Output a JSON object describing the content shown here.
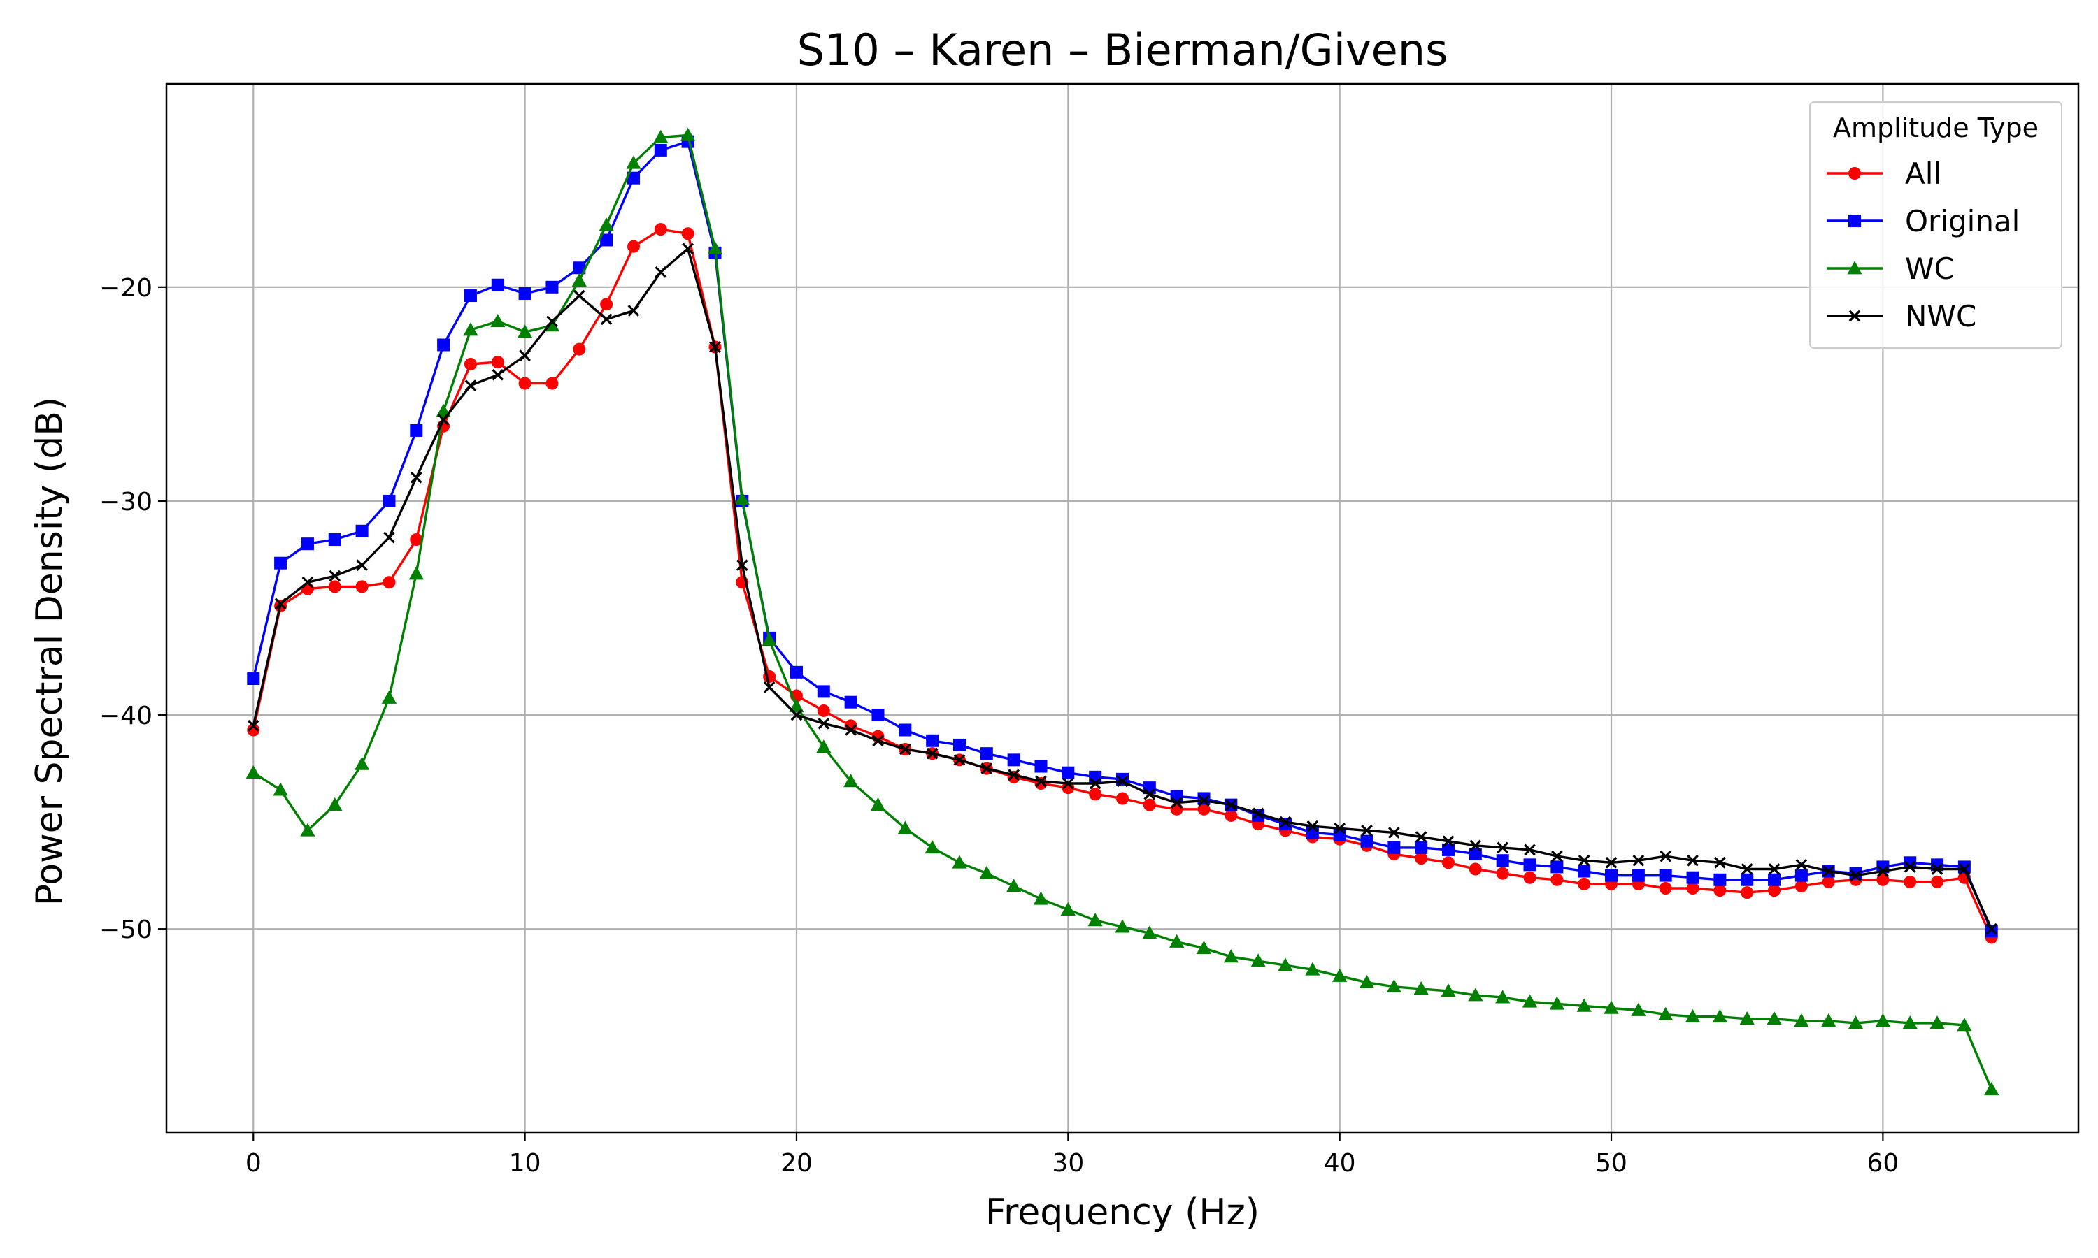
{
  "chart_data": {
    "type": "line",
    "title": "S10 – Karen – Bierman/Givens",
    "xlabel": "Frequency (Hz)",
    "ylabel": "Power Spectral Density (dB)",
    "xlim": [
      -3.2,
      67.2
    ],
    "ylim": [
      -59.5,
      -10.5
    ],
    "xticks": [
      0,
      10,
      20,
      30,
      40,
      50,
      60
    ],
    "yticks": [
      -20,
      -30,
      -40,
      -50
    ],
    "ytick_labels": [
      "−20",
      "−30",
      "−40",
      "−50"
    ],
    "grid": true,
    "legend": {
      "title": "Amplitude Type",
      "placement": "top-right"
    },
    "x": [
      0,
      1,
      2,
      3,
      4,
      5,
      6,
      7,
      8,
      9,
      10,
      11,
      12,
      13,
      14,
      15,
      16,
      17,
      18,
      19,
      20,
      21,
      22,
      23,
      24,
      25,
      26,
      27,
      28,
      29,
      30,
      31,
      32,
      33,
      34,
      35,
      36,
      37,
      38,
      39,
      40,
      41,
      42,
      43,
      44,
      45,
      46,
      47,
      48,
      49,
      50,
      51,
      52,
      53,
      54,
      55,
      56,
      57,
      58,
      59,
      60,
      61,
      62,
      63,
      64
    ],
    "series": [
      {
        "name": "All",
        "color": "#ff0000",
        "marker": "circle",
        "values": [
          -40.7,
          -34.9,
          -34.1,
          -34.0,
          -34.0,
          -33.8,
          -31.8,
          -26.5,
          -23.6,
          -23.5,
          -24.5,
          -24.5,
          -22.9,
          -20.8,
          -18.1,
          -17.3,
          -17.5,
          -22.8,
          -33.8,
          -38.2,
          -39.1,
          -39.8,
          -40.5,
          -41.0,
          -41.6,
          -41.8,
          -42.1,
          -42.5,
          -42.9,
          -43.2,
          -43.4,
          -43.7,
          -43.9,
          -44.2,
          -44.4,
          -44.4,
          -44.7,
          -45.1,
          -45.4,
          -45.7,
          -45.8,
          -46.1,
          -46.5,
          -46.7,
          -46.9,
          -47.2,
          -47.4,
          -47.6,
          -47.7,
          -47.9,
          -47.9,
          -47.9,
          -48.1,
          -48.1,
          -48.2,
          -48.3,
          -48.2,
          -48.0,
          -47.8,
          -47.7,
          -47.7,
          -47.8,
          -47.8,
          -47.6,
          -50.4
        ]
      },
      {
        "name": "Original",
        "color": "#0000ff",
        "marker": "square",
        "values": [
          -38.3,
          -32.9,
          -32.0,
          -31.8,
          -31.4,
          -30.0,
          -26.7,
          -22.7,
          -20.4,
          -19.9,
          -20.3,
          -20.0,
          -19.1,
          -17.8,
          -14.9,
          -13.6,
          -13.2,
          -18.4,
          -30.0,
          -36.4,
          -38.0,
          -38.9,
          -39.4,
          -40.0,
          -40.7,
          -41.2,
          -41.4,
          -41.8,
          -42.1,
          -42.4,
          -42.7,
          -42.9,
          -43.0,
          -43.4,
          -43.8,
          -43.9,
          -44.2,
          -44.7,
          -45.1,
          -45.5,
          -45.6,
          -45.9,
          -46.2,
          -46.2,
          -46.3,
          -46.5,
          -46.8,
          -47.0,
          -47.1,
          -47.3,
          -47.5,
          -47.5,
          -47.5,
          -47.6,
          -47.7,
          -47.7,
          -47.7,
          -47.5,
          -47.3,
          -47.4,
          -47.1,
          -46.9,
          -47.0,
          -47.1,
          -50.1
        ]
      },
      {
        "name": "WC",
        "color": "#008000",
        "marker": "triangle",
        "values": [
          -42.7,
          -43.5,
          -45.4,
          -44.2,
          -42.3,
          -39.2,
          -33.4,
          -25.8,
          -22.0,
          -21.6,
          -22.1,
          -21.8,
          -19.7,
          -17.1,
          -14.2,
          -13.0,
          -12.9,
          -18.2,
          -29.9,
          -36.5,
          -39.6,
          -41.5,
          -43.1,
          -44.2,
          -45.3,
          -46.2,
          -46.9,
          -47.4,
          -48.0,
          -48.6,
          -49.1,
          -49.6,
          -49.9,
          -50.2,
          -50.6,
          -50.9,
          -51.3,
          -51.5,
          -51.7,
          -51.9,
          -52.2,
          -52.5,
          -52.7,
          -52.8,
          -52.9,
          -53.1,
          -53.2,
          -53.4,
          -53.5,
          -53.6,
          -53.7,
          -53.8,
          -54.0,
          -54.1,
          -54.1,
          -54.2,
          -54.2,
          -54.3,
          -54.3,
          -54.4,
          -54.3,
          -54.4,
          -54.4,
          -54.5,
          -57.5
        ]
      },
      {
        "name": "NWC",
        "color": "#000000",
        "marker": "x",
        "values": [
          -40.5,
          -34.8,
          -33.8,
          -33.5,
          -33.0,
          -31.7,
          -28.9,
          -26.2,
          -24.6,
          -24.1,
          -23.2,
          -21.6,
          -20.4,
          -21.5,
          -21.1,
          -19.3,
          -18.2,
          -22.8,
          -33.0,
          -38.7,
          -40.0,
          -40.4,
          -40.7,
          -41.2,
          -41.6,
          -41.8,
          -42.1,
          -42.5,
          -42.8,
          -43.1,
          -43.2,
          -43.2,
          -43.1,
          -43.7,
          -44.1,
          -44.0,
          -44.2,
          -44.6,
          -45.0,
          -45.2,
          -45.3,
          -45.4,
          -45.5,
          -45.7,
          -45.9,
          -46.1,
          -46.2,
          -46.3,
          -46.6,
          -46.8,
          -46.9,
          -46.8,
          -46.6,
          -46.8,
          -46.9,
          -47.2,
          -47.2,
          -47.0,
          -47.3,
          -47.5,
          -47.3,
          -47.1,
          -47.2,
          -47.2,
          -50.0
        ]
      }
    ]
  }
}
